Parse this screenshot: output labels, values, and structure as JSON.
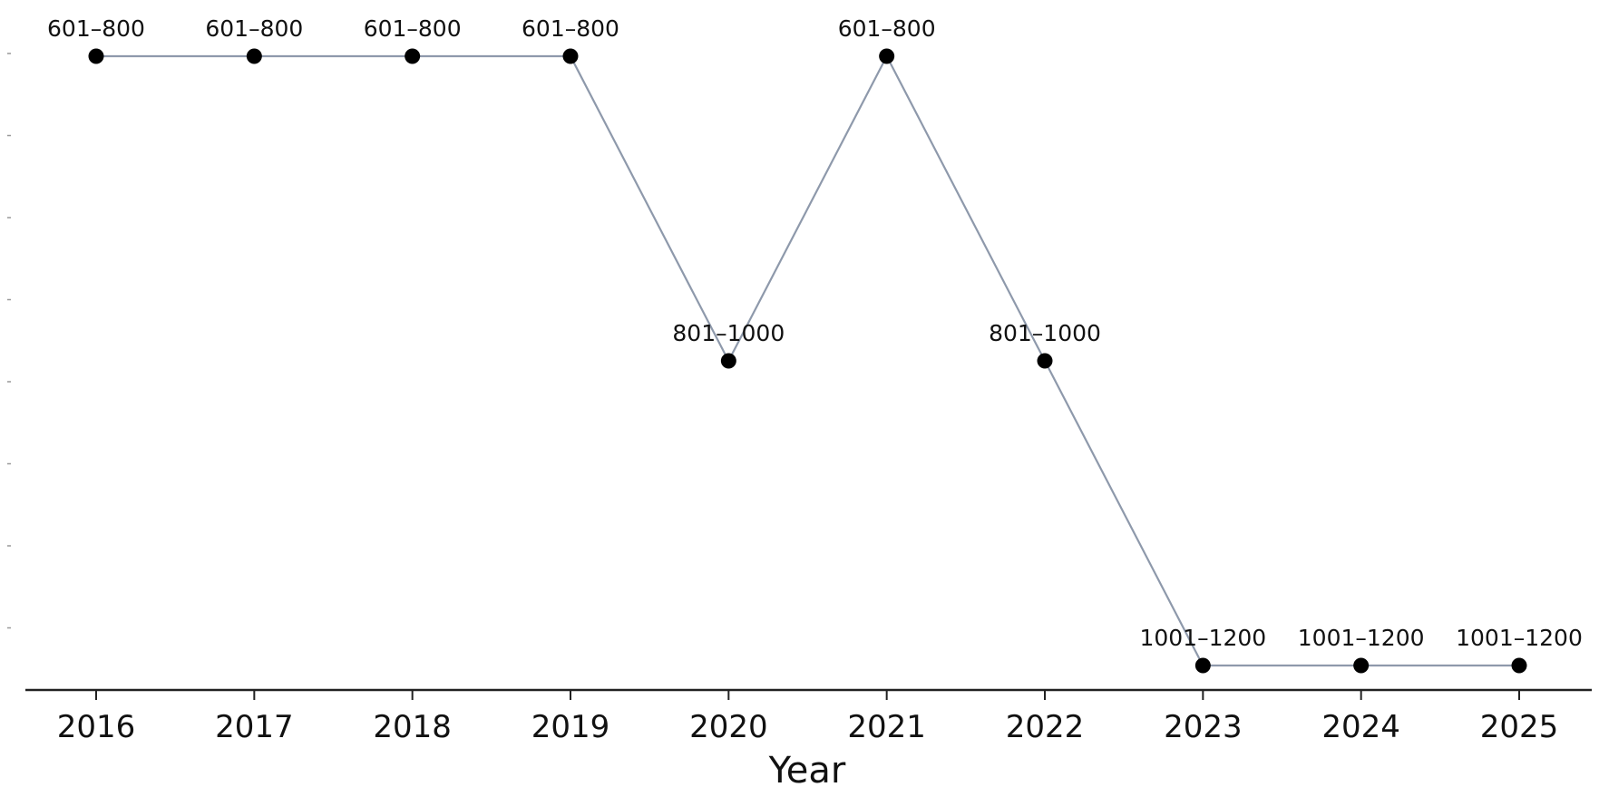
{
  "chart_data": {
    "type": "line",
    "title": "",
    "xlabel": "Year",
    "ylabel": "",
    "categories": [
      "2016",
      "2017",
      "2018",
      "2019",
      "2020",
      "2021",
      "2022",
      "2023",
      "2024",
      "2025"
    ],
    "series": [
      {
        "values": [
          700,
          700,
          700,
          700,
          900,
          700,
          900,
          1100,
          1100,
          1100
        ],
        "labels": [
          "601–800",
          "601–800",
          "601–800",
          "601–800",
          "801–1000",
          "601–800",
          "801–1000",
          "1001–1200",
          "1001–1200",
          "1001–1200"
        ]
      }
    ],
    "y_inverted": true,
    "ylim": [
      672.9,
      1106.8
    ],
    "y_ticks_shown_without_labels": 8,
    "grid": false,
    "line_color": "#8e99ab",
    "marker_color": "#000000"
  }
}
